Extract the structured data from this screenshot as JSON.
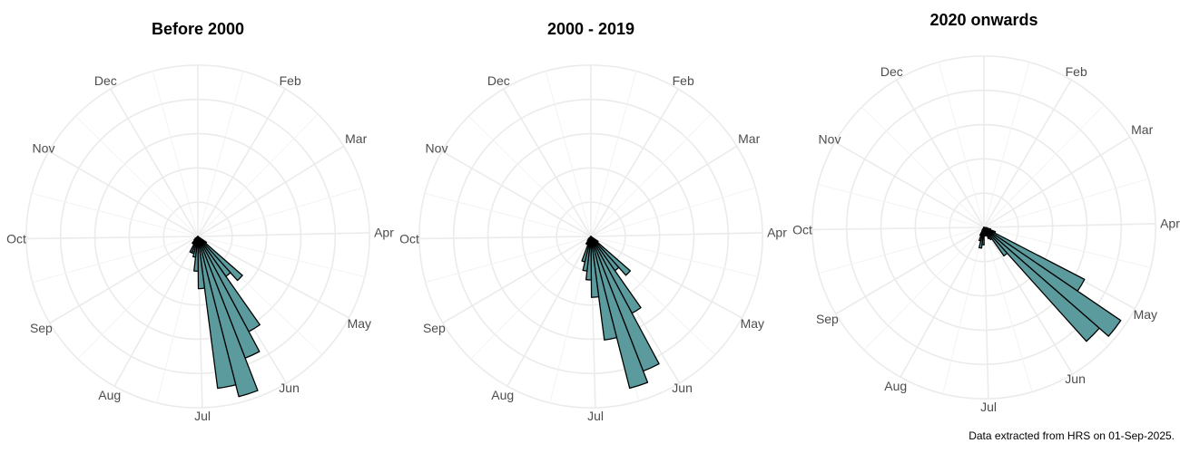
{
  "colors": {
    "bar_fill": "#5b9b9e",
    "bar_stroke": "#000000",
    "grid": "#ebebeb",
    "label": "#4d4d4d"
  },
  "caption": "Data extracted from HRS on 01-Sep-2025.",
  "chart_data": [
    {
      "type": "polar-bar",
      "title": "Before 2000",
      "month_labels": [
        "Jan",
        "Feb",
        "Mar",
        "Apr",
        "May",
        "Jun",
        "Jul",
        "Aug",
        "Sep",
        "Oct",
        "Nov",
        "Dec"
      ],
      "bin_days": 7,
      "bins_per_year": 52,
      "rings": 5,
      "grid": true,
      "values": [
        0,
        0,
        0,
        0,
        0,
        0,
        0,
        0,
        0,
        0,
        0,
        0,
        0,
        0,
        0,
        0,
        0,
        0,
        0.06,
        0.34,
        0.28,
        0.62,
        0.75,
        0.95,
        0.88,
        0.3,
        0.2,
        0.12,
        0.1,
        0.1,
        0.05,
        0.05,
        0.03,
        0.02,
        0,
        0,
        0,
        0,
        0,
        0,
        0,
        0,
        0,
        0,
        0,
        0,
        0,
        0,
        0,
        0,
        0,
        0
      ]
    },
    {
      "type": "polar-bar",
      "title": "2000 - 2019",
      "month_labels": [
        "Jan",
        "Feb",
        "Mar",
        "Apr",
        "May",
        "Jun",
        "Jul",
        "Aug",
        "Sep",
        "Oct",
        "Nov",
        "Dec"
      ],
      "bin_days": 7,
      "bins_per_year": 52,
      "rings": 5,
      "grid": true,
      "values": [
        0,
        0,
        0,
        0,
        0,
        0,
        0,
        0,
        0,
        0,
        0,
        0,
        0,
        0,
        0,
        0,
        0,
        0,
        0.05,
        0.3,
        0.24,
        0.5,
        0.83,
        0.9,
        0.6,
        0.35,
        0.25,
        0.2,
        0.15,
        0.05,
        0.05,
        0.03,
        0.02,
        0,
        0,
        0,
        0,
        0,
        0,
        0,
        0,
        0,
        0,
        0,
        0,
        0,
        0,
        0,
        0,
        0,
        0,
        0
      ]
    },
    {
      "type": "polar-bar",
      "title": "2020 onwards",
      "month_labels": [
        "Jan",
        "Feb",
        "Mar",
        "Apr",
        "May",
        "Jun",
        "Jul",
        "Aug",
        "Sep",
        "Oct",
        "Nov",
        "Dec"
      ],
      "bin_days": 7,
      "bins_per_year": 52,
      "rings": 5,
      "grid": true,
      "values": [
        0,
        0,
        0,
        0,
        0,
        0,
        0,
        0,
        0,
        0,
        0,
        0,
        0,
        0,
        0.02,
        0.04,
        0.07,
        0.65,
        0.95,
        0.88,
        0.2,
        0.08,
        0.07,
        0.05,
        0.04,
        0.05,
        0.1,
        0.12,
        0.08,
        0.05,
        0.02,
        0,
        0,
        0,
        0,
        0,
        0,
        0,
        0,
        0,
        0,
        0,
        0,
        0,
        0,
        0,
        0,
        0,
        0,
        0,
        0,
        0
      ]
    }
  ]
}
